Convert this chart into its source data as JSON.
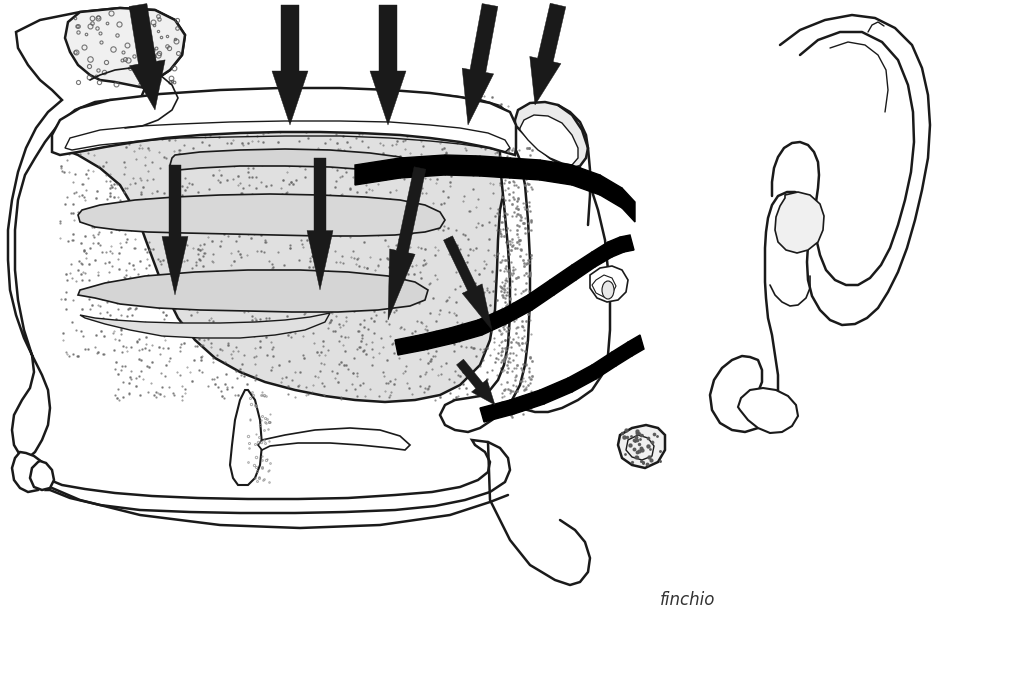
{
  "bg": "#ffffff",
  "lc": "#1a1a1a",
  "fig_w": 10.24,
  "fig_h": 6.93,
  "dpi": 100,
  "signature": "finchio"
}
